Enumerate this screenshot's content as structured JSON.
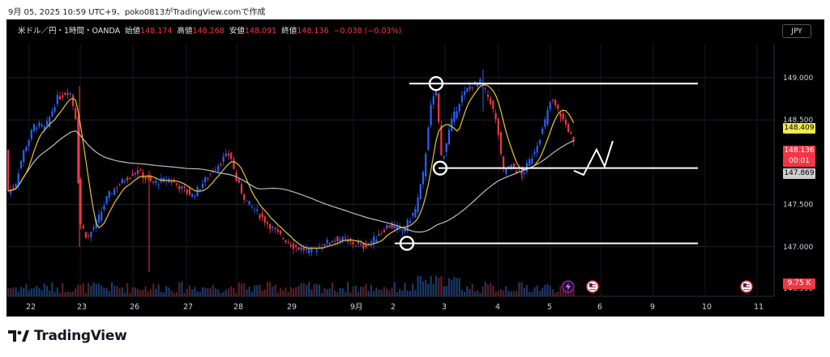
{
  "caption": "9月 05, 2025 10:59 UTC+9、poko0813がTradingView.comで作成",
  "symbol": {
    "name": "米ドル／円・1時間・OANDA",
    "open_label": "始値",
    "open": "148.174",
    "high_label": "高値",
    "high": "148.268",
    "low_label": "安値",
    "low": "148.091",
    "close_label": "終値",
    "close": "148.136",
    "change": "−0.038 (−0.03%)"
  },
  "currency_button": "JPY",
  "price_axis": {
    "ticks": [
      {
        "value": 149.0,
        "label": "149.000"
      },
      {
        "value": 148.5,
        "label": "148.500"
      },
      {
        "value": 147.5,
        "label": "147.500"
      },
      {
        "value": 147.0,
        "label": "147.000"
      }
    ],
    "bottom_label": "146.500"
  },
  "price_tags": {
    "ma_short": {
      "label": "148.409",
      "value": 148.409,
      "bg": "#f5e94f",
      "fg": "#000000"
    },
    "last": {
      "label": "148.136",
      "timer": "00:01",
      "value": 148.136,
      "bg": "#f23645",
      "fg": "#ffffff"
    },
    "ma_long": {
      "label": "147.869",
      "value": 147.869,
      "bg": "#cfcfcf",
      "fg": "#000000"
    },
    "volume": {
      "label": "9.75 K",
      "bg": "#f23645",
      "fg": "#ffffff"
    }
  },
  "time_axis": {
    "labels": [
      "22",
      "23",
      "26",
      "27",
      "28",
      "29",
      "9月",
      "2",
      "3",
      "4",
      "5",
      "6",
      "9",
      "10",
      "11"
    ]
  },
  "colors": {
    "up": "#2962ff",
    "down": "#f23645",
    "ma_short": "#e6c43a",
    "ma_long": "#bdbdbd",
    "annotation": "#ffffff"
  },
  "chart_data": {
    "type": "line",
    "series": [],
    "price_range": [
      146.5,
      149.2
    ],
    "levels": [
      148.93,
      147.93,
      147.04
    ],
    "circle_markers": [
      148.93,
      147.93,
      147.04
    ],
    "markers": [
      {
        "icon": "lightning-icon"
      },
      {
        "icon": "us-flag-icon"
      },
      {
        "icon": "us-flag-icon"
      }
    ]
  },
  "footer": {
    "brand": "TradingView"
  }
}
